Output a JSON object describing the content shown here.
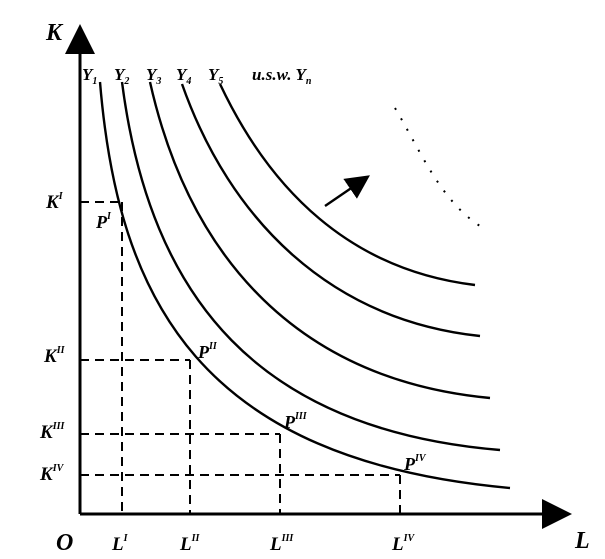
{
  "axes": {
    "y_label": "K",
    "x_label": "L",
    "origin_label": "O"
  },
  "curves": [
    "Y1",
    "Y2",
    "Y3",
    "Y4",
    "Y5"
  ],
  "curve_labels": [
    {
      "base": "Y",
      "sub": "1"
    },
    {
      "base": "Y",
      "sub": "2"
    },
    {
      "base": "Y",
      "sub": "3"
    },
    {
      "base": "Y",
      "sub": "4"
    },
    {
      "base": "Y",
      "sub": "5"
    }
  ],
  "continuation_label": {
    "text": "u.s.w. ",
    "base": "Y",
    "sub": "n"
  },
  "k_levels": [
    {
      "base": "K",
      "sup": "I"
    },
    {
      "base": "K",
      "sup": "II"
    },
    {
      "base": "K",
      "sup": "III"
    },
    {
      "base": "K",
      "sup": "IV"
    }
  ],
  "l_levels": [
    {
      "base": "L",
      "sup": "I"
    },
    {
      "base": "L",
      "sup": "II"
    },
    {
      "base": "L",
      "sup": "III"
    },
    {
      "base": "L",
      "sup": "IV"
    }
  ],
  "points": [
    {
      "base": "P",
      "sup": "I"
    },
    {
      "base": "P",
      "sup": "II"
    },
    {
      "base": "P",
      "sup": "III"
    },
    {
      "base": "P",
      "sup": "IV"
    }
  ],
  "colors": {
    "ink": "#000000",
    "background": "#ffffff"
  }
}
